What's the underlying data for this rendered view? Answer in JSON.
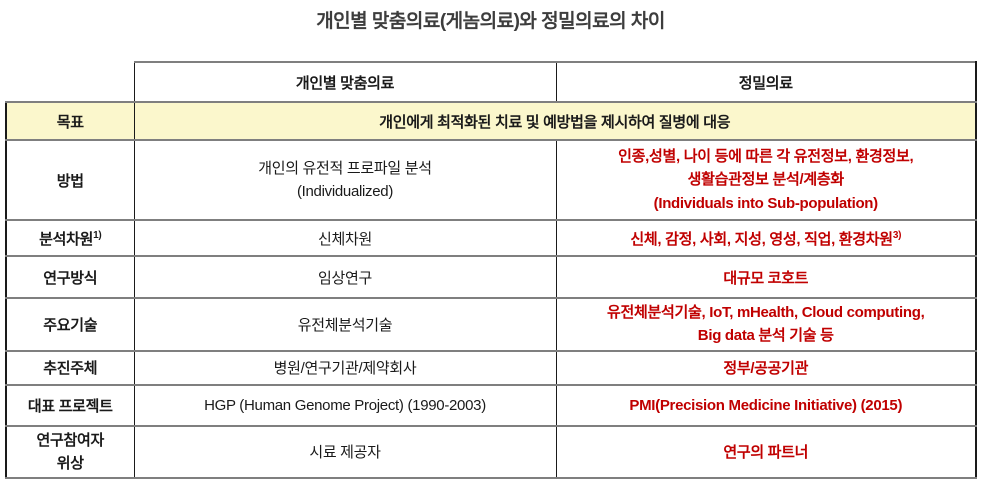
{
  "title": "개인별 맞춤의료(게놈의료)와 정밀의료의 차이",
  "table": {
    "header": {
      "personalized": "개인별 맞춤의료",
      "precision": "정밀의료"
    },
    "goal_row": {
      "label": "목표",
      "value": "개인에게 최적화된 치료 및 예방법을 제시하여 질병에 대응"
    },
    "rows": {
      "method": {
        "label": "방법",
        "left_line1": "개인의 유전적 프로파일 분석",
        "left_line2": "(Individualized)",
        "right_line1": "인종,성별, 나이 등에 따른 각 유전정보, 환경정보,",
        "right_line2": "생활습관정보 분석/계층화",
        "right_line3": "(Individuals into Sub-population)"
      },
      "dimension": {
        "label": "분석차원",
        "label_sup": "1)",
        "left": "신체차원",
        "right": "신체, 감정, 사회, 지성, 영성, 직업, 환경차원",
        "right_sup": "3)"
      },
      "research": {
        "label": "연구방식",
        "left": "임상연구",
        "right": "대규모 코호트"
      },
      "technology": {
        "label": "주요기술",
        "left": "유전체분석기술",
        "right_line1": "유전체분석기술, IoT, mHealth, Cloud computing,",
        "right_line2": "Big data 분석 기술 등"
      },
      "actor": {
        "label": "추진주체",
        "left": "병원/연구기관/제약회사",
        "right": "정부/공공기관"
      },
      "project": {
        "label": "대표 프로젝트",
        "left": "HGP (Human Genome Project) (1990-2003)",
        "right": "PMI(Precision Medicine Initiative) (2015)"
      },
      "participant": {
        "label_line1": "연구참여자",
        "label_line2": "위상",
        "left": "시료 제공자",
        "right": "연구의 파트너"
      }
    }
  },
  "colors": {
    "accent_red": "#c00000",
    "highlight_yellow": "#fbf7cc",
    "border_gray": "#7f7f7f",
    "border_black": "#1a1a1a",
    "title_gray": "#3d3d3d"
  }
}
